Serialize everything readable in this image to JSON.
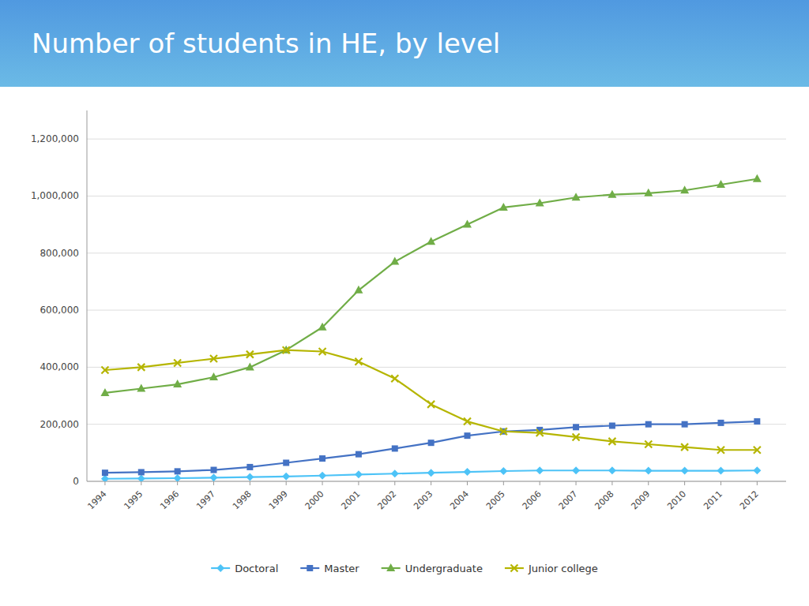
{
  "chart_data": {
    "type": "line",
    "title": "Number of students in HE, by level",
    "x": [
      1994,
      1995,
      1996,
      1997,
      1998,
      1999,
      2000,
      2001,
      2002,
      2003,
      2004,
      2005,
      2006,
      2007,
      2008,
      2009,
      2010,
      2011,
      2012
    ],
    "xlim": [
      1993.5,
      2012.8
    ],
    "xticks": [
      1994,
      1995,
      1996,
      1997,
      1998,
      1999,
      2000,
      2001,
      2002,
      2003,
      2004,
      2005,
      2006,
      2007,
      2008,
      2009,
      2010,
      2011,
      2012
    ],
    "ylim": [
      0,
      1300000
    ],
    "yticks": [
      0,
      {
        "value": 200000,
        "label": "200,000"
      },
      {
        "value": 400000,
        "label": "400,000"
      },
      {
        "value": 600000,
        "label": "600,000"
      },
      {
        "value": 800000,
        "label": "800,000"
      },
      {
        "value": 1000000,
        "label": "1,000,000"
      },
      {
        "value": 1200000,
        "label": "1,200,000"
      }
    ],
    "grid": true,
    "legend": "bottom",
    "series": [
      {
        "name": "Doctoral",
        "color": "#4dc3f7",
        "marker": "diamond",
        "values": [
          9000,
          10000,
          11000,
          13000,
          15000,
          17000,
          20000,
          24000,
          27000,
          30000,
          33000,
          36000,
          38000,
          38000,
          38000,
          37000,
          37000,
          37000,
          38000
        ]
      },
      {
        "name": "Master",
        "color": "#4472c4",
        "marker": "square",
        "values": [
          30000,
          32000,
          35000,
          40000,
          50000,
          65000,
          80000,
          95000,
          115000,
          135000,
          160000,
          175000,
          180000,
          190000,
          195000,
          200000,
          200000,
          205000,
          210000
        ]
      },
      {
        "name": "Undergraduate",
        "color": "#70ad47",
        "marker": "triangle",
        "values": [
          310000,
          325000,
          340000,
          365000,
          400000,
          460000,
          540000,
          670000,
          770000,
          840000,
          900000,
          960000,
          975000,
          995000,
          1005000,
          1010000,
          1020000,
          1040000,
          1060000
        ]
      },
      {
        "name": "Junior college",
        "color": "#b5b500",
        "marker": "x",
        "values": [
          390000,
          400000,
          415000,
          430000,
          445000,
          460000,
          455000,
          420000,
          360000,
          270000,
          210000,
          175000,
          170000,
          155000,
          140000,
          130000,
          120000,
          110000,
          110000
        ]
      }
    ]
  }
}
